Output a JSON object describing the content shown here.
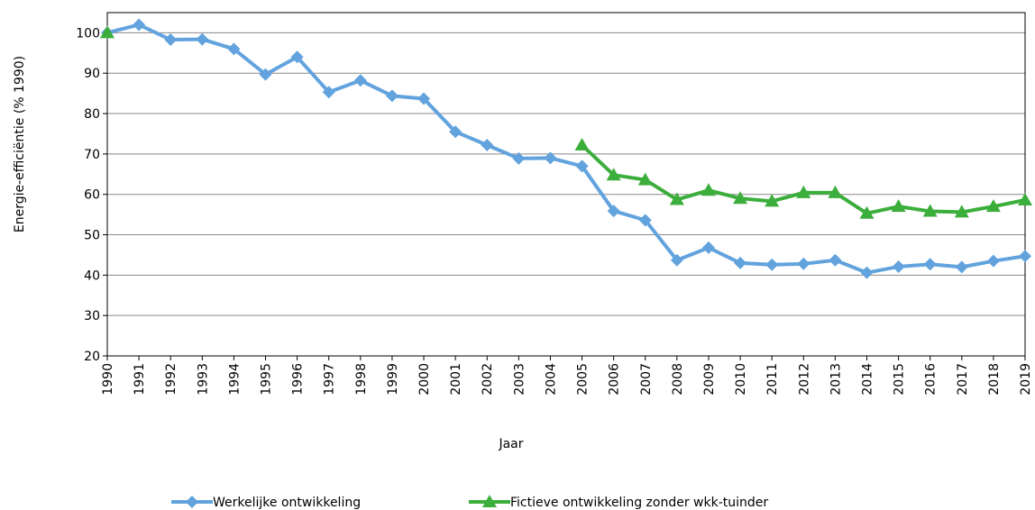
{
  "chart_data": {
    "type": "line",
    "x_label": "Jaar",
    "y_label": "Energie-efficiëntie (% 1990)",
    "categories": [
      "1990",
      "1991",
      "1992",
      "1993",
      "1994",
      "1995",
      "1996",
      "1997",
      "1998",
      "1999",
      "2000",
      "2001",
      "2002",
      "2003",
      "2004",
      "2005",
      "2006",
      "2007",
      "2008",
      "2009",
      "2010",
      "2011",
      "2012",
      "2013",
      "2014",
      "2015",
      "2016",
      "2017",
      "2018",
      "2019"
    ],
    "series": [
      {
        "name": "Werkelijke ontwikkeling",
        "color": "#62a3de",
        "marker": "diamond",
        "values": [
          100,
          102,
          98.3,
          98.4,
          96,
          89.7,
          94,
          85.3,
          88.2,
          84.4,
          83.7,
          75.5,
          72.2,
          68.9,
          69,
          67,
          55.9,
          53.6,
          43.7,
          46.8,
          43,
          42.6,
          42.8,
          43.7,
          40.6,
          42.1,
          42.7,
          42,
          43.5,
          44.7
        ]
      },
      {
        "name": "Fictieve ontwikkeling zonder wkk-tuinder",
        "color": "#3cae3c",
        "marker": "triangle",
        "values": [
          100,
          null,
          null,
          null,
          null,
          null,
          null,
          null,
          null,
          null,
          null,
          null,
          null,
          null,
          null,
          72.2,
          64.8,
          63.6,
          58.7,
          61,
          59,
          58.3,
          60.4,
          60.4,
          55.3,
          57,
          55.8,
          55.6,
          57,
          58.6
        ]
      }
    ],
    "ylim": [
      20,
      105
    ],
    "yticks": [
      20,
      30,
      40,
      50,
      60,
      70,
      80,
      90,
      100
    ],
    "grid": true,
    "legend": "bottom"
  }
}
